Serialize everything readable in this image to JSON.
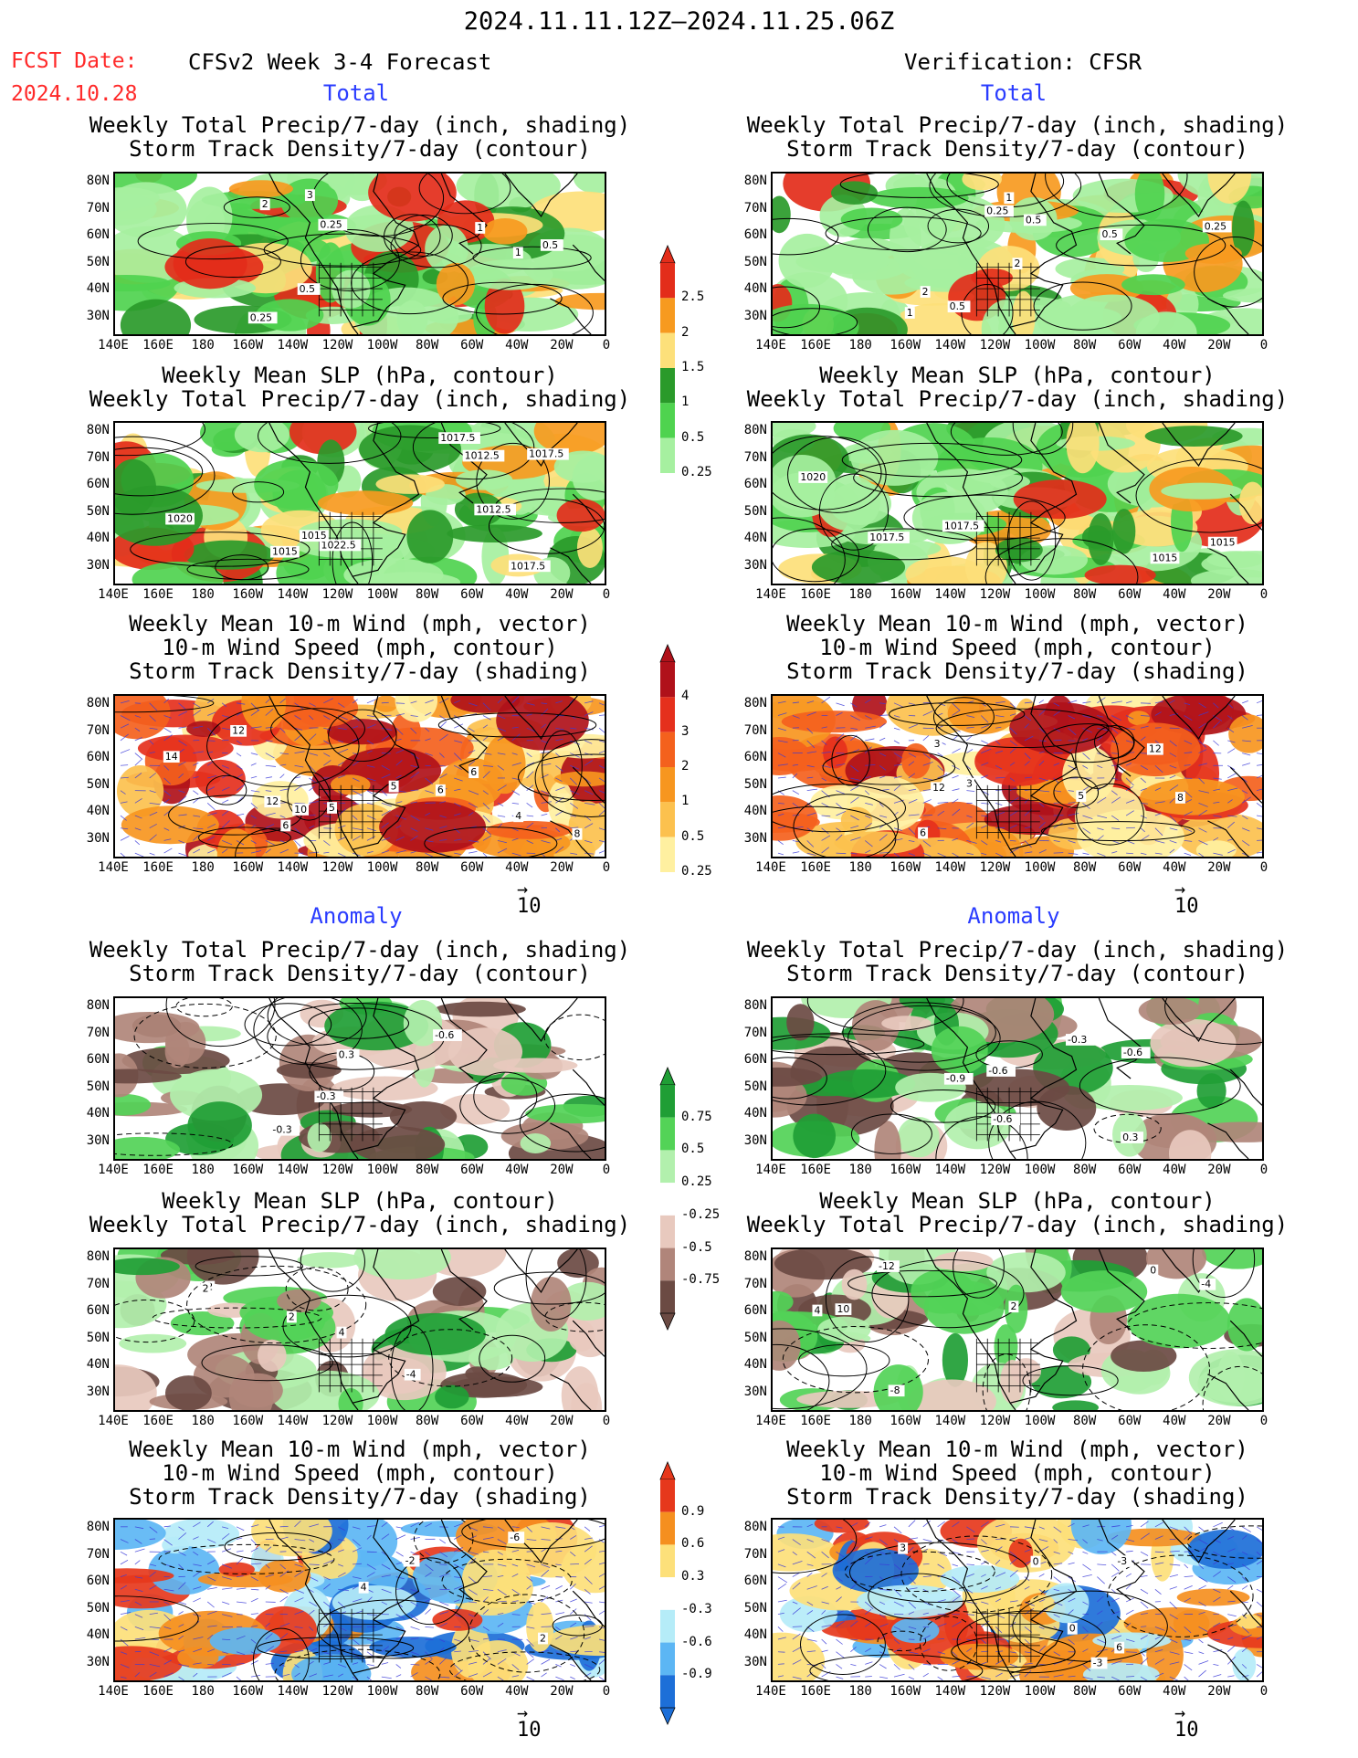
{
  "header": {
    "period": "2024.11.11.12Z–2024.11.25.06Z",
    "fcst_label": "FCST Date:",
    "fcst_date": "2024.10.28",
    "left_title": "CFSv2 Week 3-4 Forecast",
    "right_title": "Verification: CFSR"
  },
  "sections": {
    "total": "Total",
    "anomaly": "Anomaly"
  },
  "panel_titles": {
    "precip_storm": [
      "Weekly Total Precip/7-day (inch, shading)",
      "Storm Track Density/7-day (contour)"
    ],
    "slp_precip": [
      "Weekly Mean SLP (hPa, contour)",
      "Weekly Total Precip/7-day (inch, shading)"
    ],
    "wind_storm": [
      "Weekly Mean 10-m Wind (mph, vector)",
      "10-m Wind Speed (mph, contour)",
      "Storm Track Density/7-day (shading)"
    ]
  },
  "axes": {
    "lat_labels": [
      "80N",
      "70N",
      "60N",
      "50N",
      "40N",
      "30N"
    ],
    "lon_labels": [
      "140E",
      "160E",
      "180",
      "160W",
      "140W",
      "120W",
      "100W",
      "80W",
      "60W",
      "40W",
      "20W",
      "0"
    ]
  },
  "vector_ref": "10",
  "colorbars": {
    "precip_total": {
      "labels": [
        "2.5",
        "2",
        "1.5",
        "1",
        "0.5",
        "0.25"
      ],
      "colors": [
        "#e32d1a",
        "#f79a1f",
        "#fde07a",
        "#2a9a2a",
        "#4fd34f",
        "#a6f0a0"
      ]
    },
    "storm_total": {
      "labels": [
        "4",
        "3",
        "2",
        "1",
        "0.5",
        "0.25"
      ],
      "colors": [
        "#b0111a",
        "#e5301d",
        "#f4611d",
        "#f7961f",
        "#fcc14e",
        "#fff0a0"
      ]
    },
    "precip_anom": {
      "labels": [
        "0.75",
        "0.5",
        "0.25",
        "-0.25",
        "-0.5",
        "-0.75"
      ],
      "colors_pos": [
        "#1f9e35",
        "#53d357",
        "#b2f0ad"
      ],
      "colors_neg": [
        "#e8c9be",
        "#b0857a",
        "#6b4a43"
      ]
    },
    "storm_anom": {
      "labels": [
        "0.9",
        "0.6",
        "0.3",
        "-0.3",
        "-0.6",
        "-0.9"
      ],
      "colors_pos": [
        "#e6381c",
        "#f58f1f",
        "#fde07a"
      ],
      "colors_neg": [
        "#b5ecf8",
        "#5cb6f4",
        "#1d6fd8"
      ]
    }
  },
  "contour_labels": {
    "l_precip_tot": [
      "0.25",
      "0.5",
      "3",
      "2",
      "1",
      "0.25",
      "0.5",
      "1"
    ],
    "r_precip_tot": [
      "2",
      "1",
      "0.5",
      "0.5",
      "0.5",
      "0.25",
      "0.25",
      "2",
      "1"
    ],
    "l_slp_tot": [
      "1015",
      "1020",
      "1017.5",
      "1012.5",
      "1022.5",
      "1017.5",
      "1017.5",
      "1012.5",
      "1015"
    ],
    "r_slp_tot": [
      "1017.5",
      "1015",
      "1020",
      "1015",
      "1017.5"
    ],
    "l_wind_tot": [
      "10",
      "6",
      "8",
      "12",
      "14",
      "12",
      "4",
      "6",
      "5",
      "5",
      "6"
    ],
    "r_wind_tot": [
      "3",
      "5",
      "3",
      "6",
      "12",
      "12",
      "8"
    ],
    "l_precip_anom": [
      "-0.3",
      "0.3",
      "-0.3",
      "-0.6"
    ],
    "r_precip_anom": [
      "-0.6",
      "-0.9",
      "-0.3",
      "0.3",
      "-0.6",
      "-0.6"
    ],
    "l_slp_anom": [
      "4",
      "2",
      "-4",
      "2",
      "2"
    ],
    "r_slp_anom": [
      "2",
      "4",
      "-4",
      "-8",
      "10",
      "-12",
      "0"
    ],
    "l_wind_anom": [
      "4",
      "-6",
      "2",
      "-2"
    ],
    "r_wind_anom": [
      "0",
      "-3",
      "3",
      "-3",
      "6",
      "0"
    ]
  }
}
